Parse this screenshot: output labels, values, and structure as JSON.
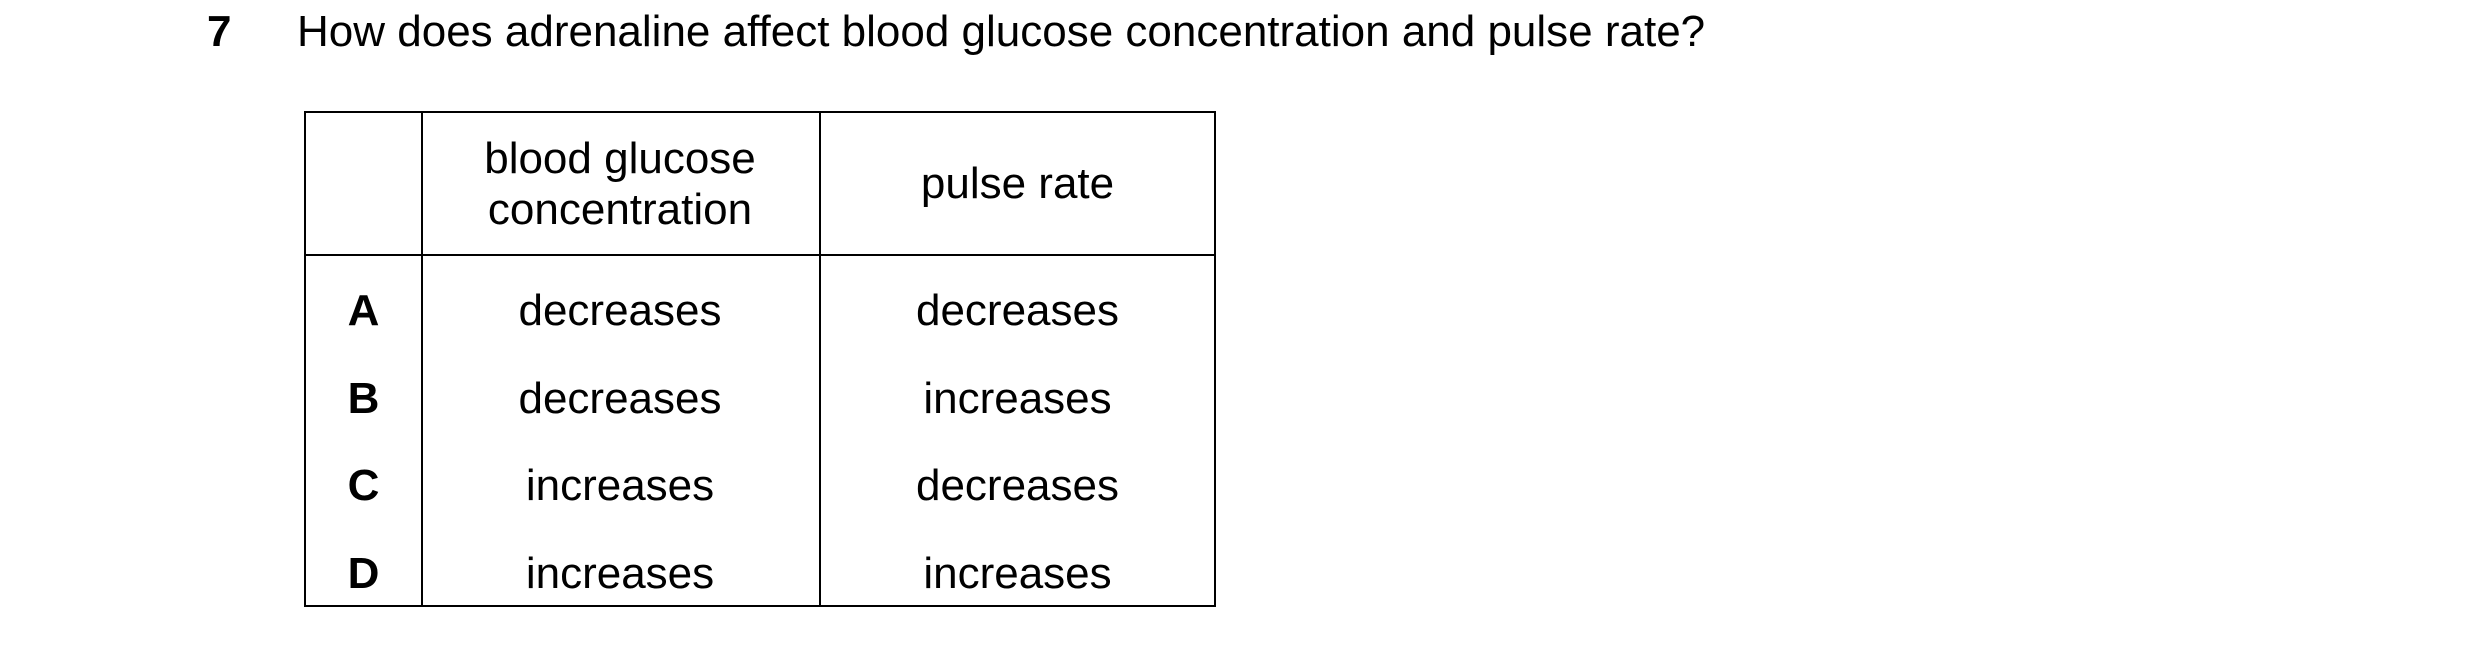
{
  "question": {
    "number": "7",
    "text": "How does adrenaline affect blood glucose concentration and pulse rate?"
  },
  "table": {
    "headers": [
      "blood glucose concentration",
      "pulse rate"
    ],
    "rows": [
      {
        "option": "A",
        "cells": [
          "decreases",
          "decreases"
        ]
      },
      {
        "option": "B",
        "cells": [
          "decreases",
          "increases"
        ]
      },
      {
        "option": "C",
        "cells": [
          "increases",
          "decreases"
        ]
      },
      {
        "option": "D",
        "cells": [
          "increases",
          "increases"
        ]
      }
    ]
  }
}
